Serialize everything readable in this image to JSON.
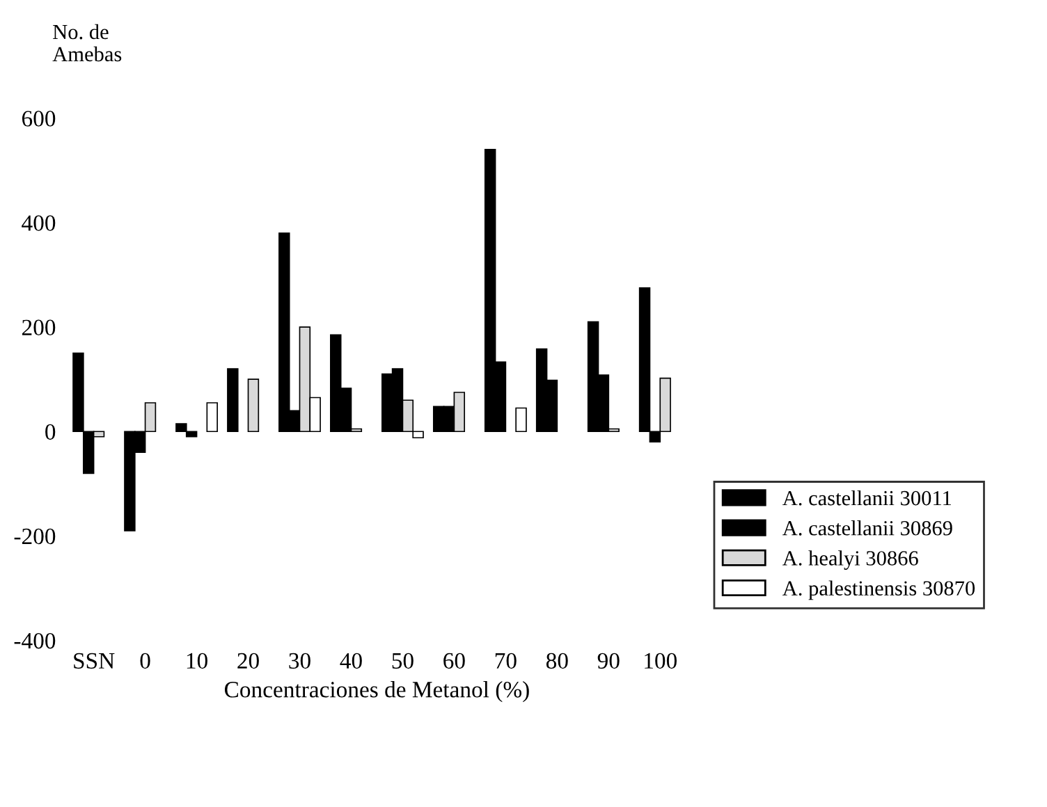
{
  "chart_data": {
    "type": "bar",
    "ylabel": "No. de\nAmebas",
    "xlabel": "Concentraciones de Metanol (%)",
    "categories": [
      "SSN",
      "0",
      "10",
      "20",
      "30",
      "40",
      "50",
      "60",
      "70",
      "80",
      "90",
      "100"
    ],
    "series": [
      {
        "name": "A. castellanii 30011",
        "color": "#000000",
        "values": [
          150,
          -190,
          15,
          120,
          380,
          185,
          110,
          48,
          540,
          158,
          210,
          275
        ]
      },
      {
        "name": "A. castellanii 30869",
        "color": "#000000",
        "values": [
          -80,
          -40,
          -10,
          null,
          40,
          83,
          120,
          48,
          133,
          98,
          108,
          -20
        ]
      },
      {
        "name": "A. healyi 30866",
        "color": "#d9d9d9",
        "values": [
          -10,
          55,
          null,
          100,
          200,
          5,
          60,
          75,
          null,
          null,
          5,
          102
        ]
      },
      {
        "name": "A. palestinensis 30870",
        "color": "#ffffff",
        "values": [
          null,
          null,
          55,
          null,
          65,
          null,
          -12,
          null,
          45,
          null,
          null,
          null
        ]
      }
    ],
    "ylim": [
      -400,
      600
    ],
    "yticks": [
      -400,
      -200,
      0,
      200,
      400,
      600
    ],
    "grid": false,
    "legend": "bottom right"
  }
}
